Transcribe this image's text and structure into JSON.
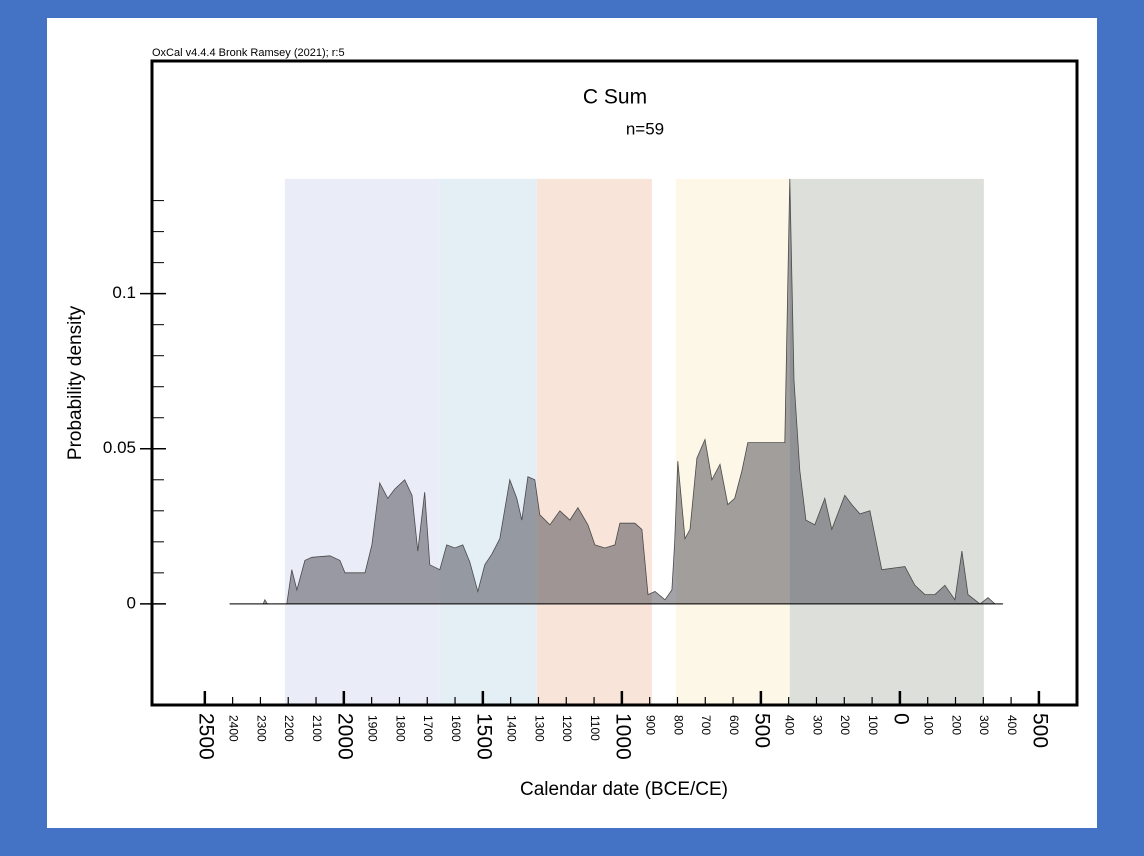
{
  "chart_data": {
    "type": "area",
    "note": "OxCal v4.4.4 Bronk Ramsey (2021); r:5",
    "title": "C Sum",
    "subtitle": "n=59",
    "x_label": "Calendar date (BCE/CE)",
    "y_label": "Probability density",
    "color": "rgba(70,70,80,0.5)",
    "line_color": "#4a4a4a",
    "xlim": [
      -2690,
      637
    ],
    "ylim": [
      -0.0326,
      0.175
    ],
    "xticks": [
      {
        "value": -2500,
        "label": "2500"
      },
      {
        "value": -2000,
        "label": "2000"
      },
      {
        "value": -1500,
        "label": "1500"
      },
      {
        "value": -1000,
        "label": "1000"
      },
      {
        "value": -500,
        "label": "500"
      },
      0,
      500
    ],
    "xticks_minor": [
      {
        "value": -2400,
        "label": "2400"
      },
      {
        "value": -2300,
        "label": "2300"
      },
      {
        "value": -2200,
        "label": "2200"
      },
      {
        "value": -2100,
        "label": "2100"
      },
      {
        "value": -1900,
        "label": "1900"
      },
      {
        "value": -1800,
        "label": "1800"
      },
      {
        "value": -1700,
        "label": "1700"
      },
      {
        "value": -1600,
        "label": "1600"
      },
      {
        "value": -1400,
        "label": "1400"
      },
      {
        "value": -1300,
        "label": "1300"
      },
      {
        "value": -1200,
        "label": "1200"
      },
      {
        "value": -1100,
        "label": "1100"
      },
      {
        "value": -900,
        "label": "900"
      },
      {
        "value": -800,
        "label": "800"
      },
      {
        "value": -700,
        "label": "700"
      },
      {
        "value": -600,
        "label": "600"
      },
      {
        "value": -400,
        "label": "400"
      },
      {
        "value": -300,
        "label": "300"
      },
      {
        "value": -200,
        "label": "200"
      },
      {
        "value": -100,
        "label": "100"
      },
      100,
      200,
      300,
      400
    ],
    "yticks": [
      0,
      0.05,
      0.1
    ],
    "yticks_minor": [
      0.01,
      0.02,
      0.03,
      0.04,
      0.06,
      0.07,
      0.08,
      0.09,
      0.11,
      0.12,
      0.13
    ],
    "band_top": 0.137,
    "bands": [
      {
        "start": -2212,
        "end": -1655,
        "color": "#eaecf7"
      },
      {
        "start": -1655,
        "end": -1306,
        "color": "#e4eff5"
      },
      {
        "start": -1306,
        "end": -892,
        "color": "#f9e4d9"
      },
      {
        "start": -806,
        "end": -396,
        "color": "#fdf7e7"
      },
      {
        "start": -396,
        "end": 302,
        "color": "#dcdfda"
      }
    ],
    "x": [
      -2410,
      -2290,
      -2284,
      -2275,
      -2205,
      -2187,
      -2169,
      -2140,
      -2115,
      -2050,
      -2014,
      -1996,
      -1924,
      -1899,
      -1871,
      -1842,
      -1817,
      -1781,
      -1755,
      -1734,
      -1709,
      -1691,
      -1655,
      -1630,
      -1601,
      -1572,
      -1547,
      -1518,
      -1493,
      -1468,
      -1439,
      -1403,
      -1378,
      -1360,
      -1338,
      -1313,
      -1295,
      -1259,
      -1223,
      -1187,
      -1158,
      -1122,
      -1097,
      -1061,
      -1025,
      -1007,
      -953,
      -928,
      -906,
      -881,
      -845,
      -820,
      -810,
      -799,
      -773,
      -755,
      -730,
      -701,
      -676,
      -647,
      -619,
      -594,
      -568,
      -547,
      -414,
      -396,
      -381,
      -360,
      -338,
      -306,
      -270,
      -245,
      -198,
      -173,
      -144,
      -108,
      -65,
      -18,
      18,
      54,
      90,
      126,
      162,
      198,
      223,
      245,
      288,
      317,
      342,
      370
    ],
    "values": [
      0,
      0,
      0.0013,
      0,
      0,
      0.011,
      0.0045,
      0.014,
      0.015,
      0.0155,
      0.014,
      0.01,
      0.01,
      0.019,
      0.039,
      0.034,
      0.037,
      0.04,
      0.035,
      0.017,
      0.036,
      0.0126,
      0.011,
      0.019,
      0.018,
      0.019,
      0.0135,
      0.004,
      0.0126,
      0.016,
      0.021,
      0.04,
      0.034,
      0.027,
      0.041,
      0.04,
      0.0287,
      0.0255,
      0.03,
      0.027,
      0.031,
      0.0255,
      0.019,
      0.018,
      0.019,
      0.026,
      0.026,
      0.024,
      0.003,
      0.004,
      0.0013,
      0.0045,
      0.02,
      0.046,
      0.021,
      0.024,
      0.047,
      0.053,
      0.04,
      0.045,
      0.032,
      0.034,
      0.043,
      0.052,
      0.052,
      0.137,
      0.072,
      0.043,
      0.027,
      0.0255,
      0.034,
      0.024,
      0.035,
      0.032,
      0.029,
      0.03,
      0.011,
      0.0116,
      0.012,
      0.006,
      0.003,
      0.003,
      0.006,
      0.0013,
      0.017,
      0.003,
      0,
      0.002,
      0,
      0
    ]
  }
}
